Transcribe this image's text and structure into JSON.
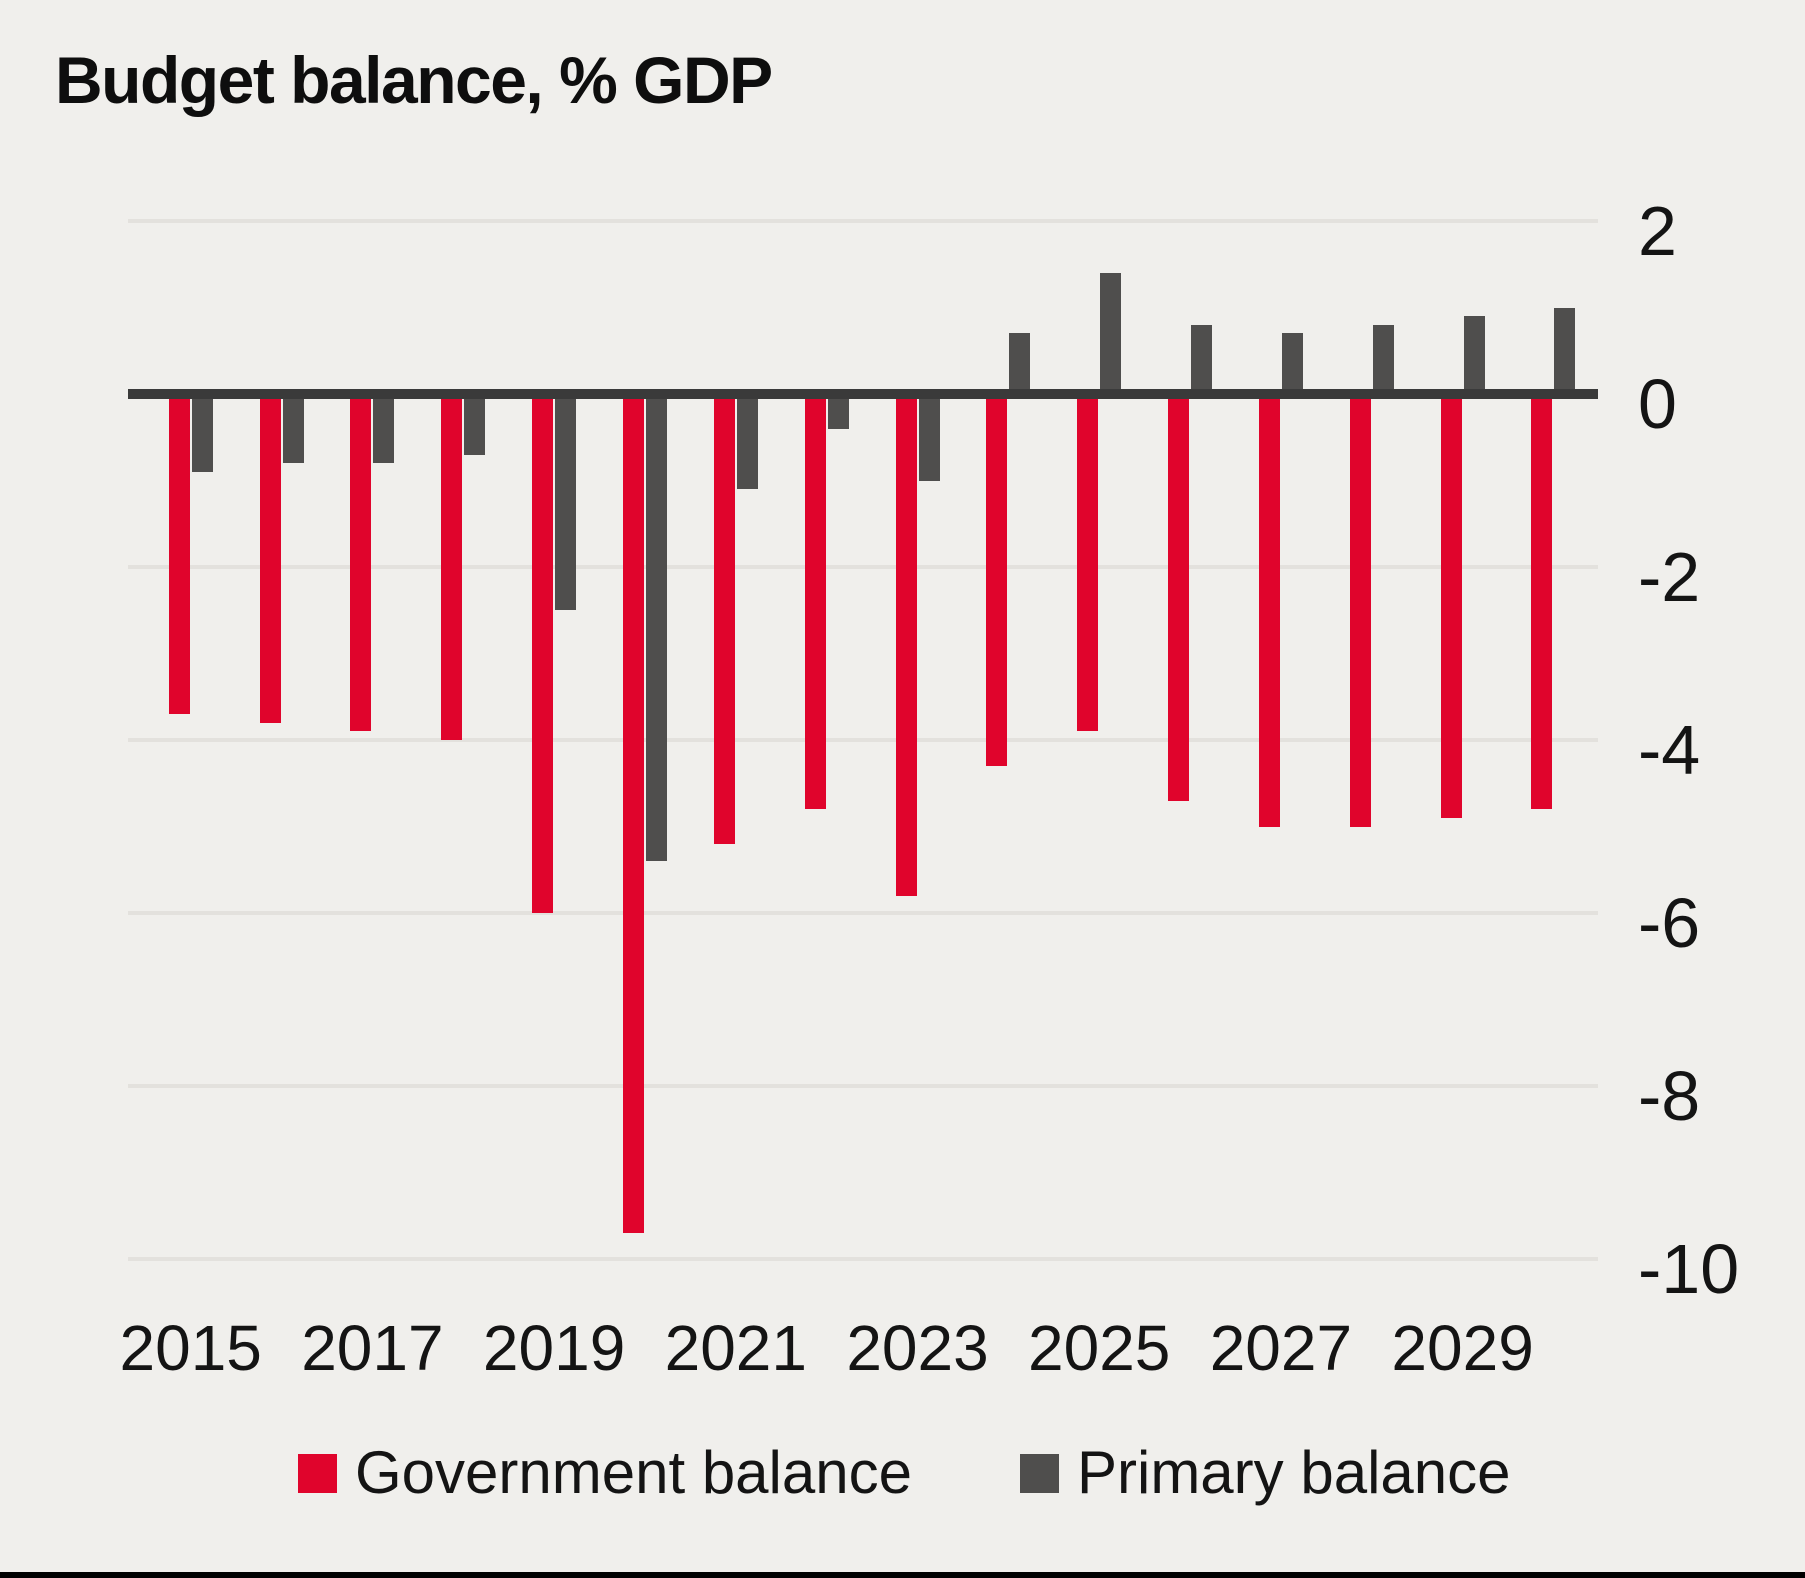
{
  "title": "Budget balance, % GDP",
  "colors": {
    "background": "#f0efec",
    "government_balance": "#e0042c",
    "primary_balance": "#4f4e4d",
    "zero_axis": "#3a3a3a",
    "gridline": "#e3e1dd",
    "text": "#141414",
    "bottom_rule": "#000000"
  },
  "chart_data": {
    "type": "bar",
    "title": "Budget balance, % GDP",
    "xlabel": "",
    "ylabel": "",
    "categories": [
      2015,
      2016,
      2017,
      2018,
      2019,
      2020,
      2021,
      2022,
      2023,
      2024,
      2025,
      2026,
      2027,
      2028,
      2029,
      2030
    ],
    "series": [
      {
        "name": "Government balance",
        "color": "#e0042c",
        "values": [
          -3.7,
          -3.8,
          -3.9,
          -4.0,
          -6.0,
          -9.7,
          -5.2,
          -4.8,
          -5.8,
          -4.3,
          -3.9,
          -4.7,
          -5.0,
          -5.0,
          -4.9,
          -4.8
        ]
      },
      {
        "name": "Primary balance",
        "color": "#4f4e4d",
        "values": [
          -0.9,
          -0.8,
          -0.8,
          -0.7,
          -2.5,
          -5.4,
          -1.1,
          -0.4,
          -1.0,
          0.7,
          1.4,
          0.8,
          0.7,
          0.8,
          0.9,
          1.0
        ]
      }
    ],
    "ylim": [
      -10,
      2
    ],
    "yticks": [
      2,
      0,
      -2,
      -4,
      -6,
      -8,
      -10
    ],
    "xtick_labels": [
      "2015",
      "2017",
      "2019",
      "2021",
      "2023",
      "2025",
      "2027",
      "2029"
    ],
    "grid": true,
    "legend_position": "bottom"
  },
  "legend": {
    "items": [
      {
        "label": "Government balance",
        "color": "#e0042c"
      },
      {
        "label": "Primary balance",
        "color": "#4f4e4d"
      }
    ]
  }
}
